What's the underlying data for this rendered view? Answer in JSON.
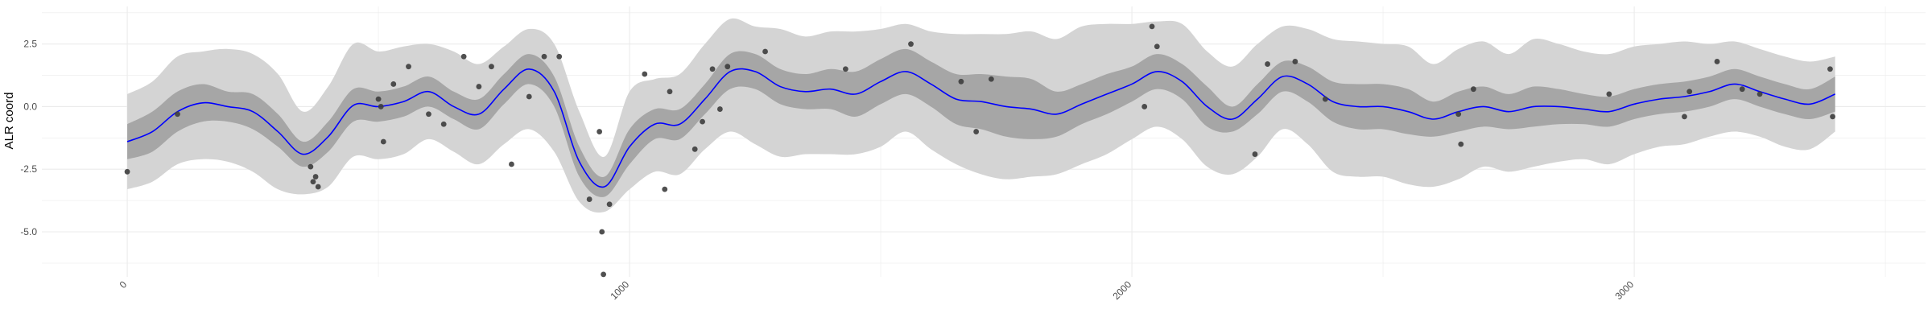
{
  "chart_data": {
    "type": "line",
    "title": "",
    "xlabel": "",
    "ylabel": "ALR coord",
    "xlim": [
      -170,
      3580
    ],
    "ylim": [
      -6.8,
      4.0
    ],
    "x_ticks": [
      0,
      1000,
      2000,
      3000
    ],
    "x_tick_labels": [
      "0",
      "1000",
      "2000",
      "3000"
    ],
    "y_ticks": [
      2.5,
      0.0,
      -2.5,
      -5.0
    ],
    "y_tick_labels": [
      "2.5",
      "0.0",
      "-2.5",
      "-5.0"
    ],
    "grid": true,
    "legend": "none",
    "colors": {
      "mean_line": "#0000ff",
      "inner_band": "#a6a6a6",
      "outer_band": "#d4d4d4",
      "points": "#3d3d3d",
      "grid": "#ebebeb"
    },
    "mean_curve": {
      "x": [
        0,
        50,
        100,
        150,
        200,
        250,
        300,
        350,
        400,
        450,
        500,
        550,
        600,
        650,
        700,
        750,
        800,
        850,
        900,
        950,
        1000,
        1050,
        1100,
        1150,
        1200,
        1250,
        1300,
        1350,
        1400,
        1450,
        1500,
        1550,
        1600,
        1650,
        1700,
        1750,
        1800,
        1850,
        1900,
        1950,
        2000,
        2050,
        2100,
        2150,
        2200,
        2250,
        2300,
        2350,
        2400,
        2450,
        2500,
        2550,
        2600,
        2650,
        2700,
        2750,
        2800,
        2850,
        2900,
        2950,
        3000,
        3050,
        3100,
        3150,
        3200,
        3250,
        3300,
        3350,
        3400
      ],
      "y": [
        -1.4,
        -1.0,
        -0.2,
        0.15,
        0.0,
        -0.2,
        -1.0,
        -1.9,
        -1.2,
        0.05,
        0.0,
        0.2,
        0.6,
        0.0,
        -0.3,
        0.7,
        1.5,
        0.6,
        -2.2,
        -3.2,
        -1.6,
        -0.7,
        -0.7,
        0.3,
        1.4,
        1.4,
        0.8,
        0.6,
        0.7,
        0.5,
        1.0,
        1.4,
        0.9,
        0.3,
        0.2,
        0.0,
        -0.1,
        -0.3,
        0.1,
        0.5,
        0.9,
        1.4,
        1.0,
        0.0,
        -0.5,
        0.3,
        1.2,
        0.9,
        0.2,
        0.0,
        0.0,
        -0.2,
        -0.5,
        -0.2,
        0.0,
        -0.2,
        0.0,
        0.0,
        -0.1,
        -0.2,
        0.1,
        0.3,
        0.4,
        0.6,
        0.9,
        0.6,
        0.3,
        0.1,
        0.5
      ],
      "inner_lower": [
        -2.1,
        -1.8,
        -1.0,
        -0.6,
        -0.6,
        -0.9,
        -1.6,
        -2.4,
        -1.8,
        -0.6,
        -0.6,
        -0.4,
        0.0,
        -0.5,
        -0.9,
        0.1,
        0.9,
        0.0,
        -2.8,
        -3.6,
        -2.3,
        -1.3,
        -1.3,
        -0.3,
        0.7,
        0.7,
        0.1,
        -0.1,
        -0.1,
        -0.4,
        0.1,
        0.5,
        0.0,
        -0.7,
        -0.9,
        -1.2,
        -1.3,
        -1.2,
        -0.7,
        -0.3,
        0.2,
        0.7,
        0.3,
        -0.8,
        -1.0,
        -0.3,
        0.6,
        0.2,
        -0.6,
        -0.9,
        -0.9,
        -1.1,
        -1.2,
        -1.0,
        -0.8,
        -0.9,
        -0.8,
        -0.7,
        -0.7,
        -0.8,
        -0.5,
        -0.3,
        -0.2,
        0.0,
        0.3,
        0.0,
        -0.3,
        -0.5,
        -0.2
      ],
      "inner_upper": [
        -0.7,
        -0.2,
        0.6,
        0.9,
        0.6,
        0.5,
        -0.3,
        -1.4,
        -0.6,
        0.7,
        0.6,
        0.8,
        1.2,
        0.6,
        0.3,
        1.3,
        2.1,
        1.2,
        -1.6,
        -2.8,
        -0.9,
        -0.1,
        -0.1,
        0.9,
        2.1,
        2.1,
        1.5,
        1.3,
        1.5,
        1.4,
        1.9,
        2.3,
        1.8,
        1.3,
        1.3,
        1.2,
        1.1,
        0.6,
        0.9,
        1.3,
        1.6,
        2.1,
        1.7,
        0.8,
        0.0,
        0.9,
        1.8,
        1.6,
        1.0,
        0.9,
        0.9,
        0.7,
        0.2,
        0.6,
        0.8,
        0.5,
        0.8,
        0.7,
        0.5,
        0.4,
        0.7,
        0.9,
        1.0,
        1.2,
        1.5,
        1.2,
        0.9,
        0.7,
        1.2
      ],
      "outer_lower": [
        -3.3,
        -3.0,
        -2.3,
        -2.1,
        -2.2,
        -2.6,
        -3.3,
        -3.5,
        -3.2,
        -2.0,
        -2.1,
        -1.9,
        -1.3,
        -1.8,
        -2.3,
        -1.5,
        -0.9,
        -1.8,
        -3.8,
        -4.2,
        -3.3,
        -2.6,
        -2.7,
        -1.7,
        -1.0,
        -1.5,
        -2.0,
        -1.9,
        -1.9,
        -1.9,
        -1.6,
        -1.0,
        -1.7,
        -2.3,
        -2.7,
        -2.9,
        -2.8,
        -2.7,
        -2.3,
        -1.9,
        -1.3,
        -0.8,
        -1.3,
        -2.4,
        -2.7,
        -2.0,
        -0.9,
        -1.5,
        -2.6,
        -2.8,
        -2.8,
        -3.1,
        -3.2,
        -2.9,
        -2.4,
        -2.6,
        -2.4,
        -2.2,
        -2.1,
        -2.3,
        -1.9,
        -1.6,
        -1.5,
        -1.2,
        -1.0,
        -1.2,
        -1.6,
        -1.7,
        -1.0
      ],
      "outer_upper": [
        0.5,
        1.0,
        2.0,
        2.2,
        2.3,
        2.1,
        1.3,
        -0.2,
        0.8,
        2.5,
        2.2,
        2.4,
        2.5,
        2.2,
        1.7,
        2.4,
        3.1,
        2.5,
        -0.2,
        -2.0,
        0.6,
        1.1,
        1.3,
        2.5,
        3.5,
        3.2,
        3.1,
        2.8,
        3.0,
        3.0,
        3.1,
        3.3,
        3.0,
        2.9,
        2.9,
        2.9,
        3.0,
        2.7,
        3.2,
        3.3,
        3.3,
        3.4,
        3.3,
        2.2,
        1.6,
        2.5,
        3.2,
        3.1,
        2.7,
        2.6,
        2.5,
        2.4,
        1.7,
        2.3,
        2.6,
        2.1,
        2.7,
        2.5,
        2.2,
        2.1,
        2.4,
        2.5,
        2.6,
        2.5,
        2.6,
        2.3,
        2.0,
        1.8,
        2.0
      ]
    },
    "points": {
      "x": [
        0,
        100,
        365,
        370,
        375,
        380,
        500,
        505,
        510,
        530,
        560,
        600,
        630,
        670,
        700,
        725,
        765,
        800,
        830,
        860,
        920,
        940,
        945,
        948,
        960,
        1030,
        1070,
        1080,
        1130,
        1145,
        1165,
        1180,
        1195,
        1270,
        1430,
        1560,
        1660,
        1690,
        1720,
        2025,
        2040,
        2050,
        2245,
        2270,
        2325,
        2385,
        2650,
        2655,
        2680,
        2950,
        3100,
        3110,
        3165,
        3215,
        3250,
        3390,
        3395
      ],
      "y": [
        -2.6,
        -0.3,
        -2.4,
        -3.0,
        -2.8,
        -3.2,
        0.3,
        0.0,
        -1.4,
        0.9,
        1.6,
        -0.3,
        -0.7,
        2.0,
        0.8,
        1.6,
        -2.3,
        0.4,
        2.0,
        2.0,
        -3.7,
        -1.0,
        -5.0,
        -6.7,
        -3.9,
        1.3,
        -3.3,
        0.6,
        -1.7,
        -0.6,
        1.5,
        -0.1,
        1.6,
        2.2,
        1.5,
        2.5,
        1.0,
        -1.0,
        1.1,
        0.0,
        3.2,
        2.4,
        -1.9,
        1.7,
        1.8,
        0.3,
        -0.3,
        -1.5,
        0.7,
        0.5,
        -0.4,
        0.6,
        1.8,
        0.7,
        0.5,
        1.5,
        -0.4
      ]
    }
  }
}
